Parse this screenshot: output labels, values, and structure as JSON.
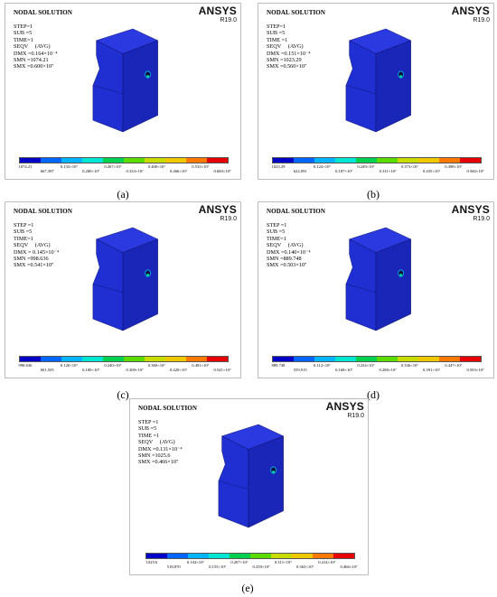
{
  "panels": [
    {
      "id": "a",
      "title": "NODAL SOLUTION",
      "brand": "ANSYS",
      "version": "R19.0",
      "info": [
        "STEP=1",
        "SUB =5",
        "TIME=1",
        "SEQV     (AVG)",
        "DMX =0.164×10⁻⁴",
        "SMN =1074.21",
        "SMX =0.600×10⁷"
      ],
      "legend_labels": [
        "1074.21",
        "667,397",
        "0.133×10⁷",
        "0.200×10⁷",
        "0.267×10⁷",
        "0.333×10⁷",
        "0.400×10⁷",
        "0.466×10⁷",
        "0.533×10⁷",
        "0.600×10⁷"
      ],
      "caption": "(a)"
    },
    {
      "id": "b",
      "title": "NODAL SOLUTION",
      "brand": "ANSYS",
      "version": "R19.0",
      "info": [
        "STEP=1",
        "SUB =5",
        "TIME =1",
        "SEQV     (AVG)",
        "DMX =0.151×10⁻⁴",
        "SMN =1023.29",
        "SMX =0.560×10⁷"
      ],
      "legend_labels": [
        "1023.29",
        "622,091",
        "0.124×10⁷",
        "0.187×10⁷",
        "0.249×10⁷",
        "0.311×10⁷",
        "0.373×10⁷",
        "0.435×10⁷",
        "0.498×10⁷",
        "0.560×10⁷"
      ],
      "caption": "(b)"
    },
    {
      "id": "c",
      "title": "NODAL SOLUTION",
      "brand": "ANSYS",
      "version": "R19.0",
      "info": [
        "STEP =1",
        "SUB =5",
        "TIME=1",
        "SEQV     (AVG)",
        "DMX = 0.145×10⁻⁴",
        "SMN =998.636",
        "SMX =0.541×10⁷"
      ],
      "legend_labels": [
        "998.636",
        "601,505",
        "0.120×10⁷",
        "0.180×10⁷",
        "0.240×10⁷",
        "0.300×10⁷",
        "0.360×10⁷",
        "0.420×10⁷",
        "0.481×10⁷",
        "0.541×10⁷"
      ],
      "caption": "(c)"
    },
    {
      "id": "d",
      "title": "NODAL SOLUTION",
      "brand": "ANSYS",
      "version": "R19.0",
      "info": [
        "STEP =1",
        "SUB =5",
        "TIME=1",
        "SEQV     (AVG)",
        "DMX =0.140×10⁻⁴",
        "SMN =889.748",
        "SMX =0.503×10⁷"
      ],
      "legend_labels": [
        "889.748",
        "559,915",
        "0.112×10⁷",
        "0.168×10⁷",
        "0.224×10⁷",
        "0.280×10⁷",
        "0.336×10⁷",
        "0.391×10⁷",
        "0.447×10⁷",
        "0.503×10⁷"
      ],
      "caption": "(d)"
    },
    {
      "id": "e",
      "title": "NODAL SOLUTION",
      "brand": "ANSYS",
      "version": "R19.0",
      "info": [
        "STEP =1",
        "SUB =5",
        "TIME =1",
        "SEQV     (AVG)",
        "DMX =0.131×10⁻⁴",
        "SMN =1025.6",
        "SMX =0.466×10⁷"
      ],
      "legend_labels": [
        "1025.6",
        "518,870",
        "0.104×10⁷",
        "0.155×10⁷",
        "0.207×10⁷",
        "0.259×10⁷",
        "0.311×10⁷",
        "0.363×10⁷",
        "0.414×10⁷",
        "0.466×10⁷"
      ],
      "caption": "(e)"
    }
  ],
  "legend_colors": [
    "#0000c8",
    "#0066ff",
    "#00b4ff",
    "#00e6d2",
    "#00d250",
    "#5adc00",
    "#c8dc00",
    "#f0c800",
    "#ff7800",
    "#e60000"
  ],
  "model_colors": {
    "front": "#1f2fd1",
    "side": "#1a26b8",
    "top": "#2a3ae0",
    "edge": "#0a0f60"
  }
}
